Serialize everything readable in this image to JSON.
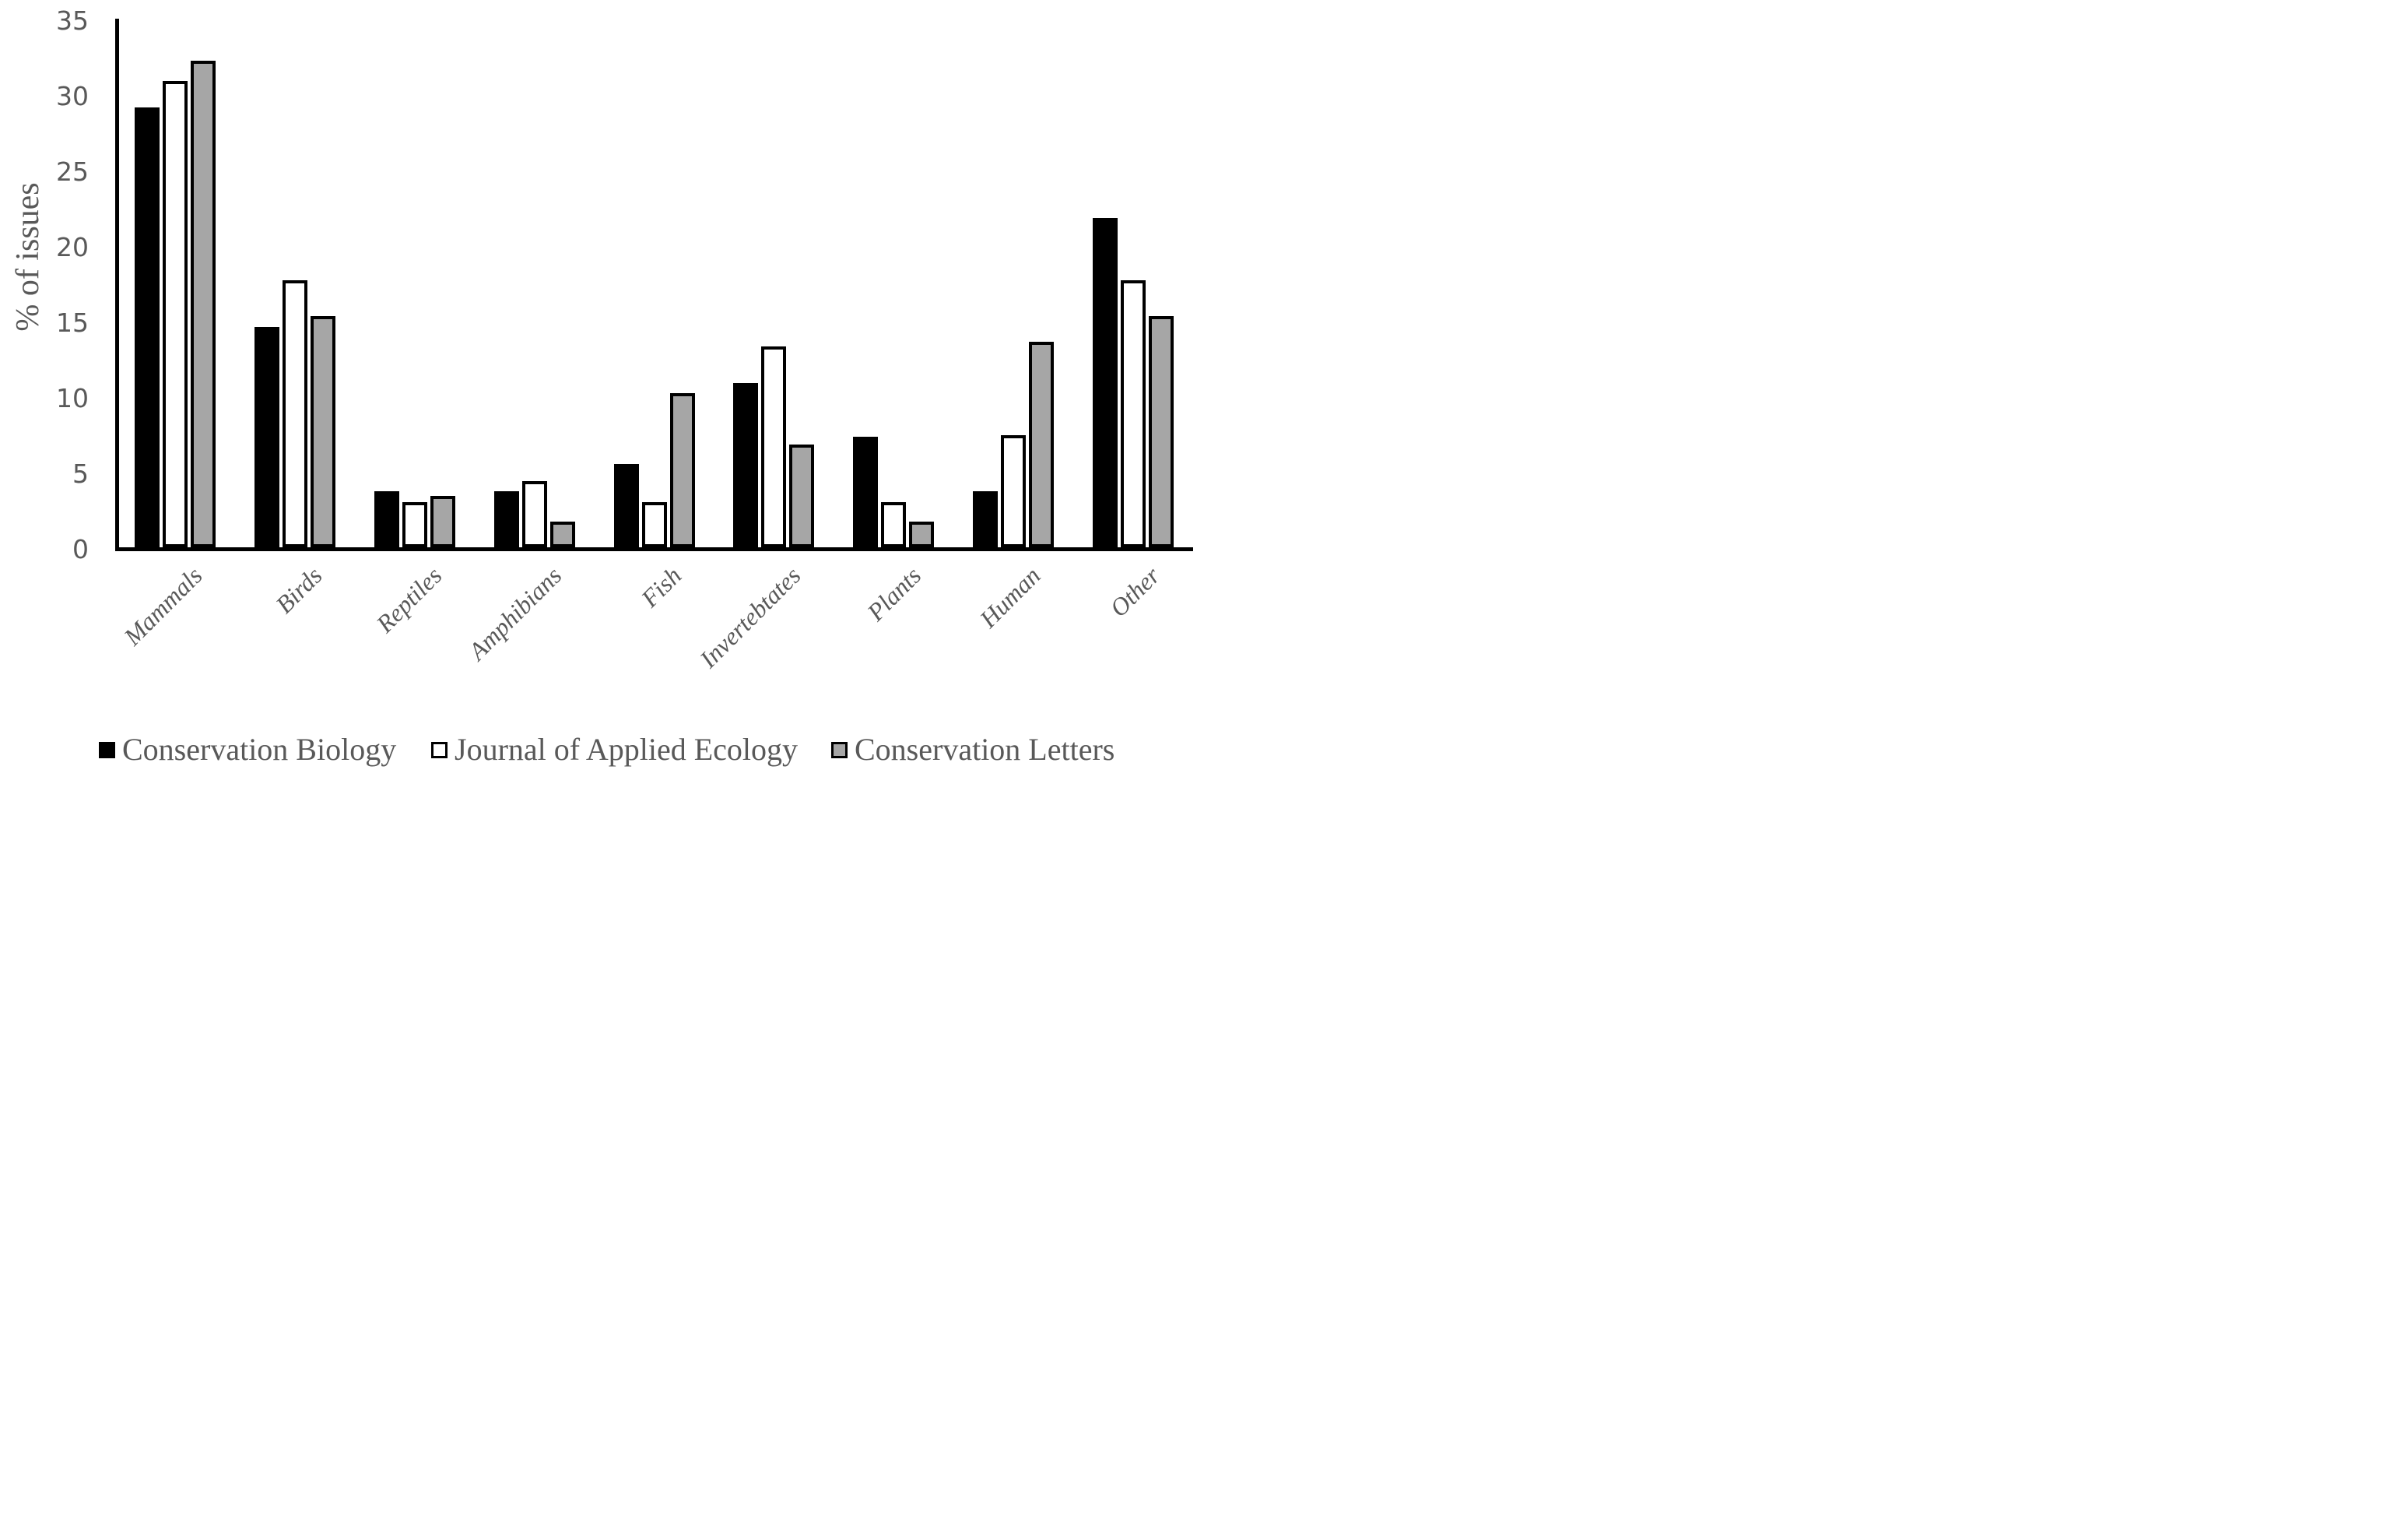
{
  "figure_title": "",
  "colors": {
    "text_gray": "#595959",
    "axis_black": "#000000",
    "series_black": "#000000",
    "series_white": "#ffffff",
    "series_gray": "#a6a6a6",
    "background": "#ffffff"
  },
  "chart_data": {
    "type": "bar",
    "title": "",
    "xlabel": "",
    "ylabel": "% of issues",
    "ylim": [
      0,
      35
    ],
    "yticks": [
      0,
      5,
      10,
      15,
      20,
      25,
      30,
      35
    ],
    "grid": false,
    "legend_position": "bottom",
    "bar_border_color": "#000000",
    "categories": [
      "Mammals",
      "Birds",
      "Reptiles",
      "Amphibians",
      "Fish",
      "Invertebtates",
      "Plants",
      "Human",
      "Other"
    ],
    "series": [
      {
        "name": "Conservation Biology",
        "fill": "#000000",
        "values": [
          29.1,
          14.6,
          3.7,
          3.7,
          5.5,
          10.9,
          7.3,
          3.7,
          21.8
        ]
      },
      {
        "name": "Journal of Applied Ecology",
        "fill": "#ffffff",
        "values": [
          30.9,
          17.7,
          3.0,
          4.4,
          3.0,
          13.3,
          3.0,
          7.4,
          17.7
        ]
      },
      {
        "name": "Conservation Letters",
        "fill": "#a6a6a6",
        "values": [
          32.2,
          15.3,
          3.4,
          1.7,
          10.2,
          6.8,
          1.7,
          13.6,
          15.3
        ]
      }
    ]
  }
}
